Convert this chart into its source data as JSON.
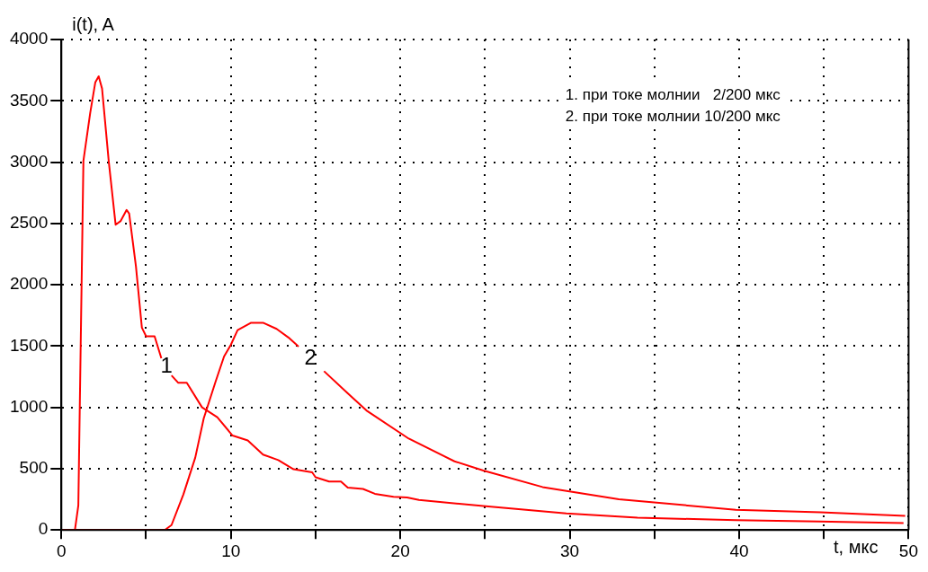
{
  "chart_data": {
    "type": "line",
    "xlabel": "t, мкс",
    "ylabel": "i(t), A",
    "annotations": [
      "1. при токе молнии   2/200 мкс",
      "2. при токе молнии 10/200 мкс"
    ],
    "xlim": [
      0,
      50
    ],
    "xticks": [
      0,
      {
        "value": 5,
        "label": null
      },
      10,
      {
        "value": 15,
        "label": null
      },
      20,
      {
        "value": 25,
        "label": null
      },
      30,
      {
        "value": 35,
        "label": null
      },
      40,
      {
        "value": 45,
        "label": null
      },
      50
    ],
    "ylim": [
      0,
      4000
    ],
    "yticks": [
      0,
      500,
      1000,
      1500,
      2000,
      2500,
      3000,
      3500,
      4000
    ],
    "grid": true,
    "legend": false,
    "marker": "none",
    "line_style": "solid",
    "series": [
      {
        "name": "1",
        "color": "#ff0000",
        "x": [
          0,
          0.8,
          1.0,
          1.3,
          1.7,
          2.0,
          2.2,
          2.4,
          2.8,
          3.2,
          3.5,
          3.85,
          4.0,
          4.4,
          4.75,
          5.0,
          5.5,
          5.9,
          6.2,
          6.5,
          6.9,
          7.4,
          8.3,
          9.2,
          10.1,
          11.0,
          11.9,
          12.8,
          13.7,
          14.8,
          15.0,
          15.8,
          16.5,
          16.9,
          17.8,
          18.5,
          19.6,
          20.4,
          21.1,
          24.9,
          29.8,
          34.0,
          39.8,
          44.7,
          49.7
        ],
        "values": [
          0,
          0,
          200,
          3010,
          3400,
          3650,
          3700,
          3600,
          3000,
          2490,
          2520,
          2610,
          2580,
          2150,
          1650,
          1580,
          1580,
          1400,
          null,
          1260,
          1200,
          1200,
          1000,
          920,
          770,
          730,
          615,
          570,
          495,
          470,
          430,
          395,
          395,
          345,
          335,
          295,
          270,
          265,
          245,
          195,
          135,
          100,
          80,
          70,
          57
        ]
      },
      {
        "name": "2",
        "color": "#ff0000",
        "x": [
          0,
          6.1,
          6.5,
          7.2,
          7.9,
          8.4,
          9.1,
          9.6,
          10.0,
          10.4,
          11.2,
          11.9,
          12.7,
          13.4,
          14.0,
          14.7,
          15.5,
          16.9,
          18.0,
          20.5,
          23.2,
          24.9,
          28.4,
          32.9,
          39.8,
          44.8,
          49.8
        ],
        "values": [
          0,
          0,
          40,
          290,
          590,
          910,
          1210,
          1415,
          1510,
          1630,
          1690,
          1690,
          1640,
          1570,
          1495,
          null,
          1295,
          1115,
          975,
          745,
          560,
          485,
          350,
          250,
          165,
          145,
          115
        ]
      }
    ]
  }
}
